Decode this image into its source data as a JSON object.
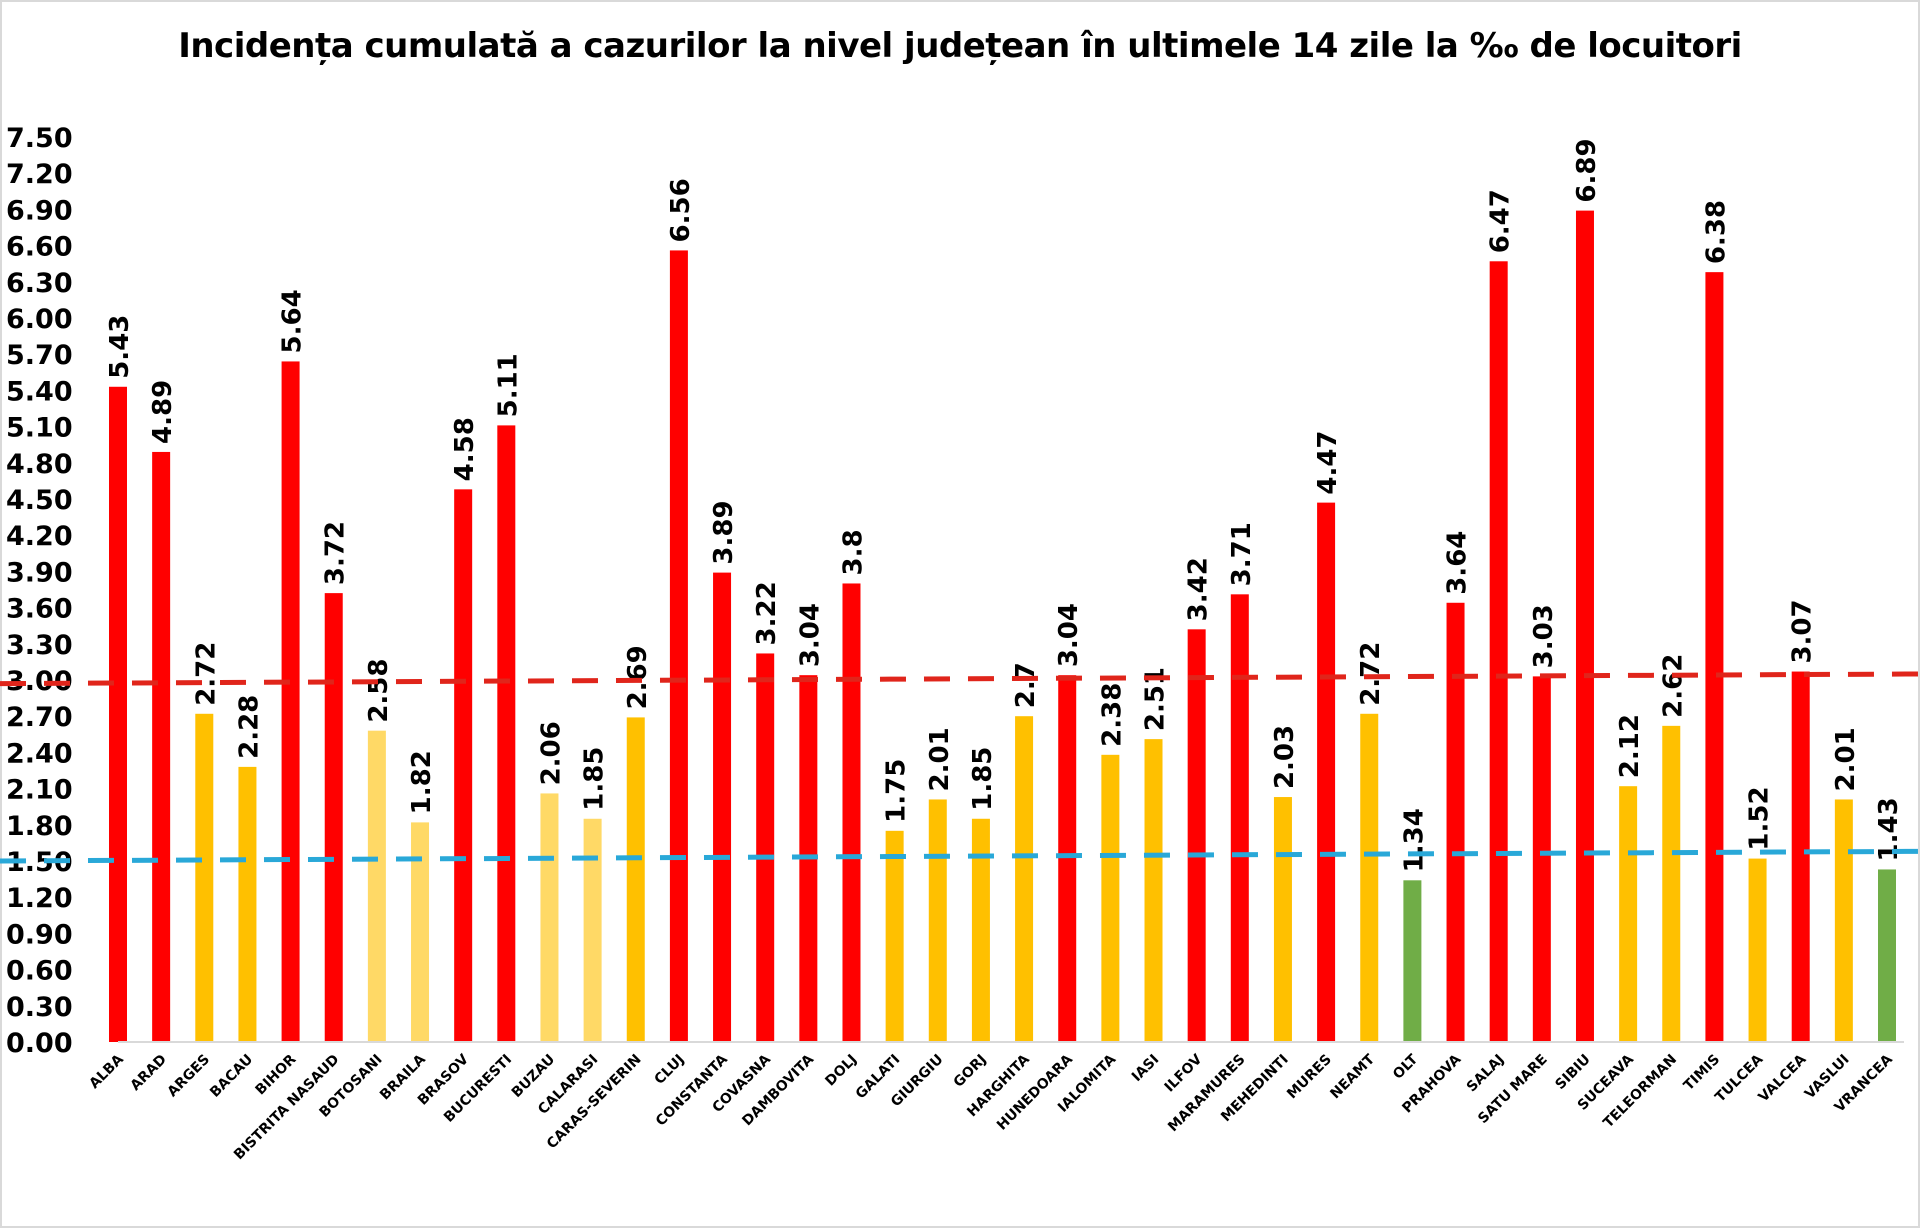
{
  "chart_data": {
    "type": "bar",
    "title": "Incidența cumulată a cazurilor la nivel județean în ultimele 14 zile la ‰ de locuitori",
    "xlabel": "",
    "ylabel": "",
    "ylim": [
      0,
      7.5
    ],
    "yticks": [
      "0.00",
      "0.30",
      "0.60",
      "0.90",
      "1.20",
      "1.50",
      "1.80",
      "2.10",
      "2.40",
      "2.70",
      "3.00",
      "3.30",
      "3.60",
      "3.90",
      "4.20",
      "4.50",
      "4.80",
      "5.10",
      "5.40",
      "5.70",
      "6.00",
      "6.30",
      "6.60",
      "6.90",
      "7.20",
      "7.50"
    ],
    "grid": false,
    "legend": "none",
    "categories": [
      "ALBA",
      "ARAD",
      "ARGES",
      "BACAU",
      "BIHOR",
      "BISTRITA NASAUD",
      "BOTOSANI",
      "BRAILA",
      "BRASOV",
      "BUCURESTI",
      "BUZAU",
      "CALARASI",
      "CARAS-SEVERIN",
      "CLUJ",
      "CONSTANTA",
      "COVASNA",
      "DAMBOVITA",
      "DOLJ",
      "GALATI",
      "GIURGIU",
      "GORJ",
      "HARGHITA",
      "HUNEDOARA",
      "IALOMITA",
      "IASI",
      "ILFOV",
      "MARAMURES",
      "MEHEDINTI",
      "MURES",
      "NEAMT",
      "OLT",
      "PRAHOVA",
      "SALAJ",
      "SATU MARE",
      "SIBIU",
      "SUCEAVA",
      "TELEORMAN",
      "TIMIS",
      "TULCEA",
      "VALCEA",
      "VASLUI",
      "VRANCEA"
    ],
    "values": [
      5.43,
      4.89,
      2.72,
      2.28,
      5.64,
      3.72,
      2.58,
      1.82,
      4.58,
      5.11,
      2.06,
      1.85,
      2.69,
      6.56,
      3.89,
      3.22,
      3.04,
      3.8,
      1.75,
      2.01,
      1.85,
      2.7,
      3.04,
      2.38,
      2.51,
      3.42,
      3.71,
      2.03,
      4.47,
      2.72,
      1.34,
      3.64,
      6.47,
      3.03,
      6.89,
      2.12,
      2.62,
      6.38,
      1.52,
      3.07,
      2.01,
      1.43
    ],
    "labels": [
      "5.43",
      "4.89",
      "2.72",
      "2.28",
      "5.64",
      "3.72",
      "2.58",
      "1.82",
      "4.58",
      "5.11",
      "2.06",
      "1.85",
      "2.69",
      "6.56",
      "3.89",
      "3.22",
      "3.04",
      "3.8",
      "1.75",
      "2.01",
      "1.85",
      "2.7",
      "3.04",
      "2.38",
      "2.51",
      "3.42",
      "3.71",
      "2.03",
      "4.47",
      "2.72",
      "1.34",
      "3.64",
      "6.47",
      "3.03",
      "6.89",
      "2.12",
      "2.62",
      "6.38",
      "1.52",
      "3.07",
      "2.01",
      "1.43"
    ],
    "bar_colors": [
      "red",
      "red",
      "orange",
      "orange",
      "red",
      "red",
      "light",
      "light",
      "red",
      "red",
      "light",
      "light",
      "orange",
      "red",
      "red",
      "red",
      "red",
      "red",
      "orange",
      "orange",
      "orange",
      "orange",
      "red",
      "orange",
      "orange",
      "red",
      "red",
      "orange",
      "red",
      "orange",
      "green",
      "red",
      "red",
      "red",
      "red",
      "orange",
      "orange",
      "red",
      "orange",
      "red",
      "orange",
      "green"
    ],
    "palette": {
      "red": "#ff0000",
      "orange": "#ffc000",
      "light": "#ffd966",
      "green": "#70ad47"
    },
    "reference_lines": [
      {
        "color": "#e0251b",
        "y_start": 2.97,
        "y_end": 3.05,
        "style": "dashed"
      },
      {
        "color": "#29a8d8",
        "y_start": 1.5,
        "y_end": 1.58,
        "style": "dashed"
      }
    ]
  }
}
